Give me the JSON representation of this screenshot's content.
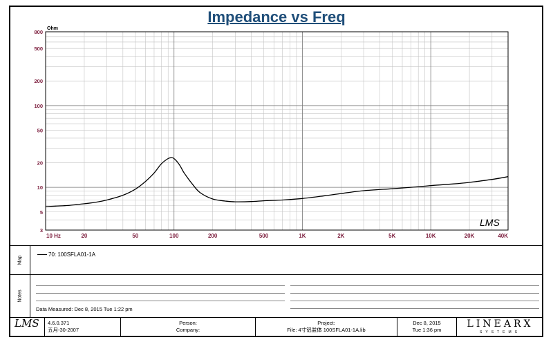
{
  "chart_data": {
    "type": "line",
    "title": "Impedance vs Freq",
    "ylabel": "Ohm",
    "x_scale": "log",
    "y_scale": "log",
    "xlim": [
      10,
      40000
    ],
    "ylim": [
      3,
      800
    ],
    "x_ticks": [
      {
        "v": 10,
        "label": "10 Hz"
      },
      {
        "v": 20,
        "label": "20"
      },
      {
        "v": 50,
        "label": "50"
      },
      {
        "v": 100,
        "label": "100"
      },
      {
        "v": 200,
        "label": "200"
      },
      {
        "v": 500,
        "label": "500"
      },
      {
        "v": 1000,
        "label": "1K"
      },
      {
        "v": 2000,
        "label": "2K"
      },
      {
        "v": 5000,
        "label": "5K"
      },
      {
        "v": 10000,
        "label": "10K"
      },
      {
        "v": 20000,
        "label": "20K"
      },
      {
        "v": 40000,
        "label": "40K"
      }
    ],
    "y_ticks": [
      {
        "v": 3,
        "label": "3"
      },
      {
        "v": 5,
        "label": "5"
      },
      {
        "v": 10,
        "label": "10"
      },
      {
        "v": 20,
        "label": "20"
      },
      {
        "v": 50,
        "label": "50"
      },
      {
        "v": 100,
        "label": "100"
      },
      {
        "v": 200,
        "label": "200"
      },
      {
        "v": 500,
        "label": "500"
      },
      {
        "v": 800,
        "label": "800"
      }
    ],
    "grid": true,
    "series": [
      {
        "name": "70: 100SFLA01-1A",
        "x": [
          10,
          12,
          15,
          20,
          25,
          30,
          40,
          50,
          60,
          70,
          80,
          90,
          95,
          100,
          110,
          120,
          140,
          160,
          200,
          250,
          300,
          400,
          500,
          700,
          1000,
          1500,
          2000,
          3000,
          5000,
          7000,
          10000,
          15000,
          20000,
          30000,
          40000
        ],
        "y": [
          5.8,
          5.9,
          6.0,
          6.3,
          6.6,
          7.0,
          8.0,
          9.5,
          11.8,
          15.0,
          19.5,
          22.5,
          23.0,
          22.5,
          19.0,
          15.0,
          10.8,
          8.6,
          7.2,
          6.8,
          6.65,
          6.7,
          6.85,
          7.0,
          7.3,
          7.9,
          8.4,
          9.1,
          9.6,
          10.0,
          10.5,
          11.0,
          11.5,
          12.5,
          13.5
        ]
      }
    ]
  },
  "panels": {
    "map_label": "Map",
    "notes_label": "Notes"
  },
  "notes": {
    "data_measured": "Data Measured: Dec  8, 2015  Tue  1:22 pm"
  },
  "footer": {
    "logo_text": "LMS",
    "version": "4.6.0.371",
    "version_date": "五月-30-2007",
    "person_label": "Person:",
    "company_label": "Company:",
    "project_label": "Project:",
    "file_label": "File: 4寸铝盆体 100SFLA01-1A.lib",
    "date": "Dec  8, 2015",
    "day_time": "Tue  1:36 pm",
    "brand": "LINEARX",
    "brand_sub": "SYSTEMS"
  },
  "watermark": "LMS"
}
